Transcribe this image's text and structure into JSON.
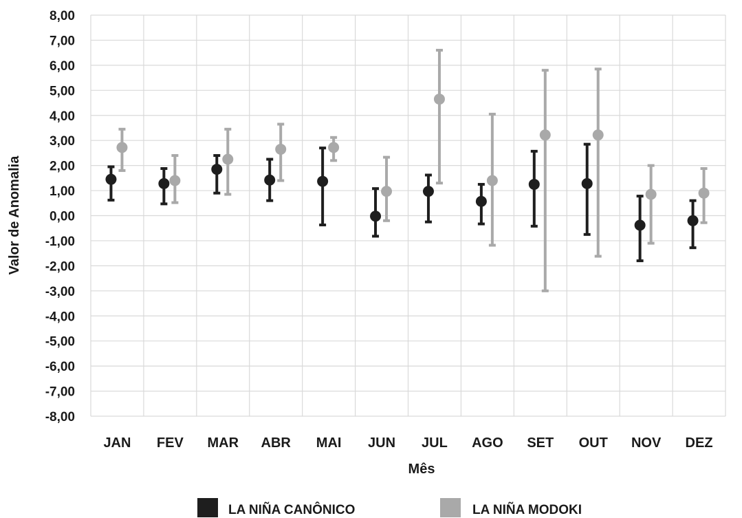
{
  "chart_data": {
    "type": "scatter",
    "title": "",
    "xlabel": "Mês",
    "ylabel": "Valor de Anomalia",
    "ylim": [
      -8,
      8
    ],
    "y_ticks": [
      "8,00",
      "7,00",
      "6,00",
      "5,00",
      "4,00",
      "3,00",
      "2,00",
      "1,00",
      "0,00",
      "-1,00",
      "-2,00",
      "-3,00",
      "-4,00",
      "-5,00",
      "-6,00",
      "-7,00",
      "-8,00"
    ],
    "categories": [
      "JAN",
      "FEV",
      "MAR",
      "ABR",
      "MAI",
      "JUN",
      "JUL",
      "AGO",
      "SET",
      "OUT",
      "NOV",
      "DEZ"
    ],
    "grid": true,
    "legend_position": "bottom",
    "series": [
      {
        "name": "LA NIÑA CANÔNICO",
        "color": "#1e1e1e",
        "values": [
          1.45,
          1.28,
          1.85,
          1.42,
          1.37,
          -0.02,
          0.97,
          0.57,
          1.25,
          1.28,
          -0.38,
          -0.2
        ],
        "err_low": [
          0.62,
          0.47,
          0.9,
          0.6,
          -0.37,
          -0.82,
          -0.25,
          -0.33,
          -0.42,
          -0.75,
          -1.8,
          -1.28
        ],
        "err_high": [
          1.95,
          1.88,
          2.4,
          2.25,
          2.7,
          1.08,
          1.62,
          1.25,
          2.57,
          2.85,
          0.78,
          0.6
        ]
      },
      {
        "name": "LA NIÑA MODOKI",
        "color": "#a9a9a9",
        "values": [
          2.72,
          1.4,
          2.25,
          2.65,
          2.72,
          0.97,
          4.65,
          1.4,
          3.22,
          3.22,
          0.85,
          0.9
        ],
        "err_low": [
          1.8,
          0.52,
          0.85,
          1.4,
          2.2,
          -0.2,
          1.3,
          -1.18,
          -3.0,
          -1.62,
          -1.1,
          -0.28
        ],
        "err_high": [
          3.45,
          2.4,
          3.45,
          3.65,
          3.12,
          2.33,
          6.6,
          4.05,
          5.8,
          5.85,
          2.0,
          1.88
        ]
      }
    ]
  }
}
